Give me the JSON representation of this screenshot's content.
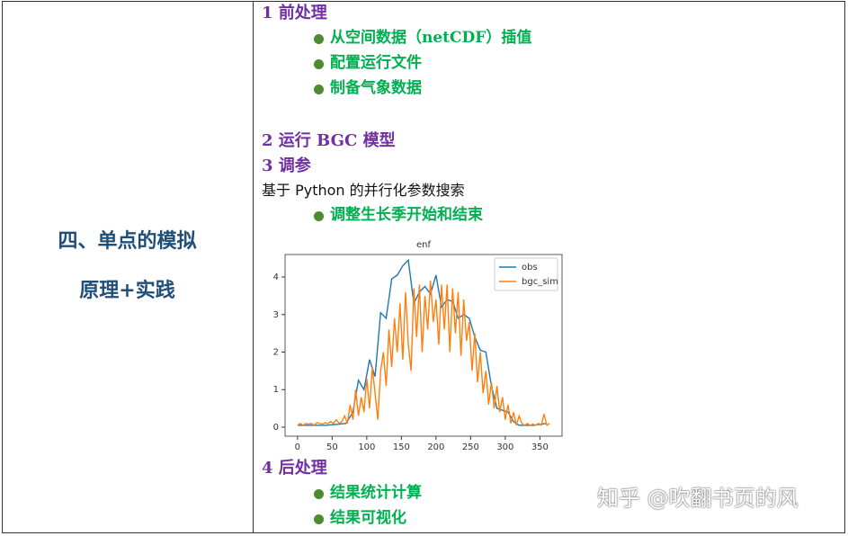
{
  "table": {
    "left": {
      "title": "四、单点的模拟",
      "subtitle": "原理+实践"
    },
    "right": {
      "sections": [
        {
          "heading": "1 前处理",
          "items": [
            "从空间数据（netCDF）插值",
            "配置运行文件",
            "制备气象数据"
          ]
        },
        {
          "heading": "2 运行 BGC 模型"
        },
        {
          "heading": "3 调参",
          "note": "基于 Python 的并行化参数搜索",
          "items": [
            "调整生长季开始和结束"
          ]
        },
        {
          "heading": "4 后处理",
          "items": [
            "结果统计计算",
            "结果可视化"
          ]
        }
      ]
    }
  },
  "watermark": "知乎 @吹翻书页的风",
  "chart_data": {
    "type": "line",
    "title": "enf",
    "xlim": [
      -18,
      382
    ],
    "ylim": [
      -0.24,
      4.6
    ],
    "xticks": [
      0,
      50,
      100,
      150,
      200,
      250,
      300,
      350
    ],
    "yticks": [
      0,
      1,
      2,
      3,
      4
    ],
    "grid": false,
    "legend": "upper right",
    "series": [
      {
        "name": "obs",
        "color": "#1f77b4",
        "x": [
          0,
          20,
          40,
          60,
          70,
          80,
          88,
          96,
          104,
          112,
          120,
          128,
          136,
          144,
          152,
          160,
          168,
          176,
          184,
          192,
          200,
          208,
          216,
          224,
          232,
          240,
          248,
          256,
          264,
          272,
          280,
          288,
          296,
          304,
          312,
          320,
          340,
          360
        ],
        "values": [
          0.05,
          0.05,
          0.05,
          0.08,
          0.1,
          0.4,
          1.25,
          1.0,
          1.8,
          1.35,
          3.05,
          2.9,
          3.95,
          4.05,
          4.3,
          4.45,
          3.3,
          3.6,
          3.75,
          3.55,
          4.05,
          3.2,
          3.4,
          3.35,
          2.9,
          3.0,
          2.9,
          2.4,
          2.05,
          2.0,
          1.1,
          0.5,
          0.45,
          0.4,
          0.15,
          0.05,
          0.05,
          0.1
        ]
      },
      {
        "name": "bgc_sim",
        "color": "#ff7f0e",
        "x": [
          0,
          4,
          8,
          12,
          16,
          20,
          24,
          28,
          32,
          36,
          40,
          44,
          48,
          52,
          56,
          60,
          64,
          68,
          72,
          76,
          80,
          84,
          88,
          92,
          96,
          100,
          104,
          108,
          112,
          116,
          120,
          124,
          128,
          132,
          136,
          140,
          144,
          148,
          152,
          156,
          160,
          164,
          168,
          172,
          176,
          180,
          184,
          188,
          192,
          196,
          200,
          204,
          208,
          212,
          216,
          220,
          224,
          228,
          232,
          236,
          240,
          244,
          248,
          252,
          256,
          260,
          264,
          268,
          272,
          276,
          280,
          284,
          288,
          292,
          296,
          300,
          304,
          308,
          312,
          316,
          320,
          324,
          328,
          332,
          336,
          340,
          344,
          348,
          352,
          356,
          360,
          364
        ],
        "values": [
          0.05,
          0.1,
          0.05,
          0.1,
          0.08,
          0.1,
          0.05,
          0.12,
          0.1,
          0.08,
          0.12,
          0.1,
          0.15,
          0.1,
          0.2,
          0.1,
          0.15,
          0.3,
          0.1,
          0.6,
          0.2,
          1.0,
          0.3,
          0.8,
          0.4,
          1.3,
          0.5,
          1.6,
          0.9,
          0.2,
          1.5,
          2.0,
          1.1,
          2.6,
          1.6,
          2.9,
          2.0,
          3.3,
          1.8,
          3.6,
          2.2,
          1.5,
          3.7,
          2.4,
          3.8,
          2.0,
          3.5,
          2.6,
          3.9,
          2.8,
          3.4,
          2.2,
          3.8,
          2.6,
          3.8,
          2.0,
          3.7,
          2.5,
          3.6,
          1.9,
          3.4,
          2.3,
          2.8,
          1.5,
          2.5,
          1.2,
          2.0,
          0.9,
          1.5,
          0.6,
          1.2,
          0.5,
          1.1,
          0.4,
          0.8,
          0.2,
          0.6,
          0.1,
          0.4,
          0.05,
          0.3,
          0.1,
          0.05,
          0.1,
          0.05,
          0.08,
          0.05,
          0.1,
          0.05,
          0.35,
          0.05,
          0.1
        ]
      }
    ]
  }
}
